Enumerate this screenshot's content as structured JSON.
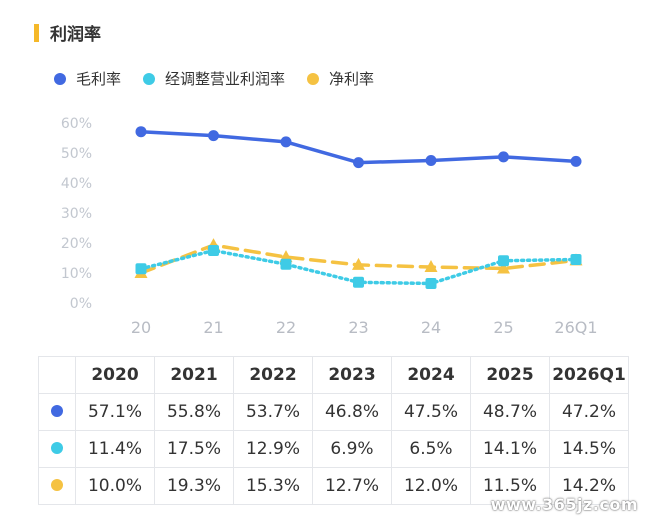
{
  "title": "利润率",
  "colors": {
    "accent_bar": "#f5b829",
    "series": [
      "#4169e1",
      "#3ecbe6",
      "#f5c242"
    ]
  },
  "chart_data": {
    "type": "line",
    "categories": [
      "20",
      "21",
      "22",
      "23",
      "24",
      "25",
      "26Q1"
    ],
    "y_ticks": [
      "0%",
      "10%",
      "20%",
      "30%",
      "40%",
      "50%",
      "60%"
    ],
    "ylim": [
      0,
      60
    ],
    "grid": false,
    "legend_position": "top-left",
    "series": [
      {
        "name": "毛利率",
        "values": [
          57.1,
          55.8,
          53.7,
          46.8,
          47.5,
          48.7,
          47.2
        ],
        "marker": "circle",
        "style": "solid"
      },
      {
        "name": "经调整营业利润率",
        "values": [
          11.4,
          17.5,
          12.9,
          6.9,
          6.5,
          14.1,
          14.5
        ],
        "marker": "square",
        "style": "dotted"
      },
      {
        "name": "净利率",
        "values": [
          10.0,
          19.3,
          15.3,
          12.7,
          12.0,
          11.5,
          14.2
        ],
        "marker": "triangle",
        "style": "dashed"
      }
    ]
  },
  "table": {
    "headers": [
      "2020",
      "2021",
      "2022",
      "2023",
      "2024",
      "2025",
      "2026Q1"
    ],
    "rows": [
      [
        "57.1%",
        "55.8%",
        "53.7%",
        "46.8%",
        "47.5%",
        "48.7%",
        "47.2%"
      ],
      [
        "11.4%",
        "17.5%",
        "12.9%",
        "6.9%",
        "6.5%",
        "14.1%",
        "14.5%"
      ],
      [
        "10.0%",
        "19.3%",
        "15.3%",
        "12.7%",
        "12.0%",
        "11.5%",
        "14.2%"
      ]
    ]
  },
  "watermark": "www.365jz.com"
}
